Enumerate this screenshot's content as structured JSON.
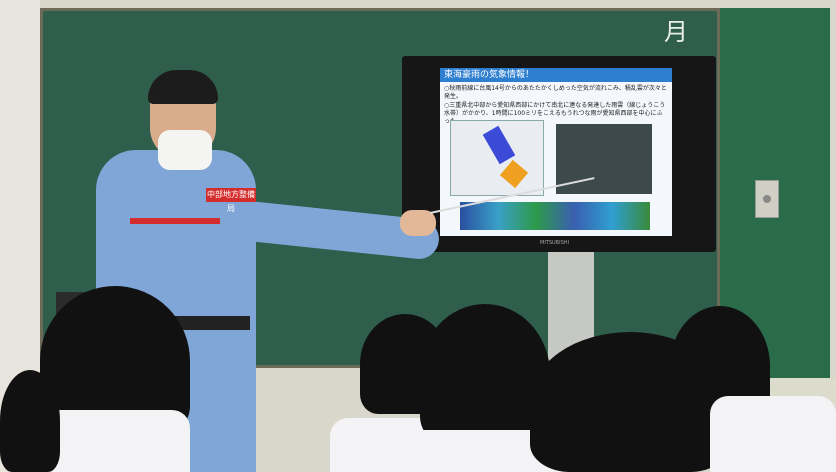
{
  "scene": {
    "chalk_text": "月",
    "badge_text": "中部地方整備局"
  },
  "slide": {
    "title": "東海豪雨の気象情報！",
    "bullets": [
      "○秋雨前線に台風14号からのあたたかくしめった空気が流れこみ、積乱雲が次々と発生。",
      "○三重県北中部から愛知県西部にかけて南北に連なる発達した雨雲（線じょうこう水帯）がかかり、1時間に100ミリをこえるもうれつな雨が愛知県西部を中心にふった。"
    ],
    "tv_brand": "MITSUBISHI"
  },
  "colors": {
    "board": "#2f5e4c",
    "uniform": "#7fa6d6",
    "slide_header": "#2f7fd0",
    "badge": "#d32d2d"
  }
}
